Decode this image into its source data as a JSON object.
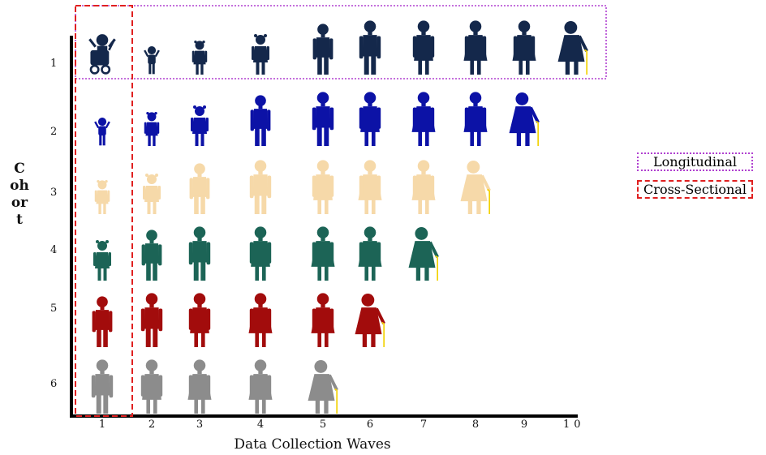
{
  "axes": {
    "x_title": "Data Collection Waves",
    "y_title": "Cohort",
    "x_ticks": [
      "1",
      "2",
      "3",
      "4",
      "5",
      "6",
      "7",
      "8",
      "9",
      "10"
    ],
    "y_ticks": [
      "1",
      "2",
      "3",
      "4",
      "5",
      "6"
    ]
  },
  "legend": {
    "longitudinal": "Longitudinal",
    "cross_sectional": "Cross-Sectional",
    "longitudinal_color": "#b040d0",
    "cross_sectional_color": "#e02020"
  },
  "cohorts": [
    {
      "cohort": "1",
      "color": "#14284b",
      "waves": 10
    },
    {
      "cohort": "2",
      "color": "#0c12a6",
      "waves": 9
    },
    {
      "cohort": "3",
      "color": "#f6d9a9",
      "waves": 8
    },
    {
      "cohort": "4",
      "color": "#1c6456",
      "waves": 7
    },
    {
      "cohort": "5",
      "color": "#a20c0c",
      "waves": 6
    },
    {
      "cohort": "6",
      "color": "#8c8c8c",
      "waves": 5
    }
  ],
  "cane_color": "#f2d200",
  "life_stages": [
    "baby-in-stroller",
    "toddler",
    "young-child",
    "child",
    "adolescent",
    "young-adult",
    "adult",
    "middle-aged-adult",
    "older-adult",
    "elderly-with-cane"
  ]
}
